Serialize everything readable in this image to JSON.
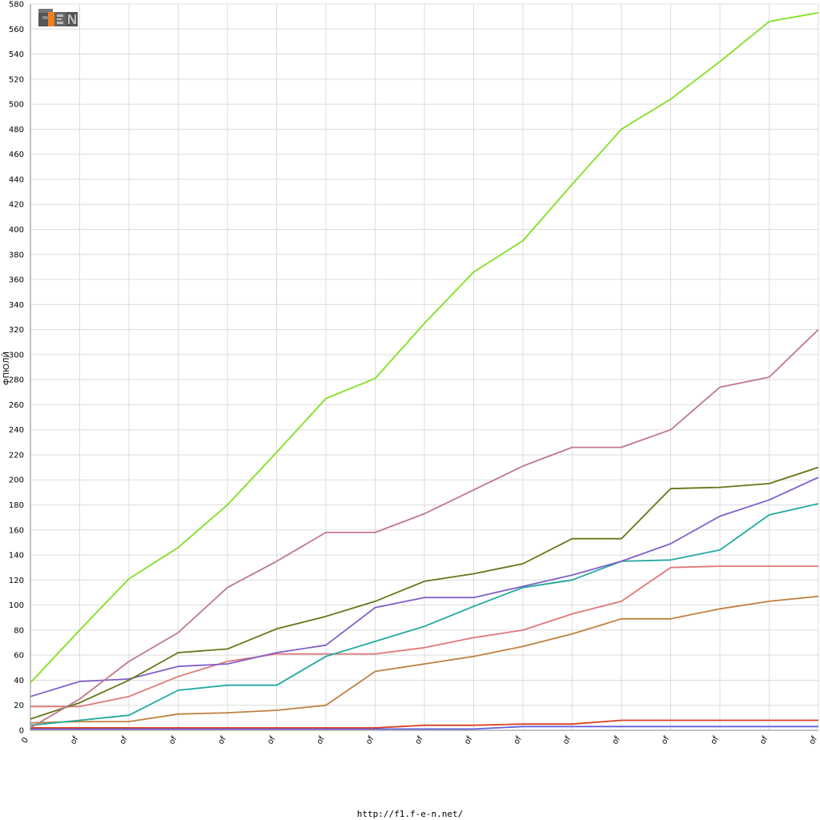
{
  "chart_data": {
    "type": "line",
    "title": "",
    "ylabel": "ФПЮЛЙ",
    "xlabel": "",
    "ylim": [
      0,
      580
    ],
    "yticks": [
      0,
      20,
      40,
      60,
      80,
      100,
      120,
      140,
      160,
      180,
      200,
      220,
      240,
      260,
      280,
      300,
      320,
      340,
      360,
      380,
      400,
      420,
      440,
      460,
      480,
      500,
      520,
      540,
      560,
      580
    ],
    "x": [
      0,
      1,
      2,
      3,
      4,
      5,
      6,
      7,
      8,
      9,
      10,
      11,
      12,
      13,
      14,
      15,
      16
    ],
    "xtick_labels": [
      "0",
      "of",
      "of",
      "of",
      "of",
      "of",
      "of",
      "of",
      "of",
      "of",
      "of",
      "of",
      "of",
      "of",
      "of",
      "of",
      "of"
    ],
    "grid": true,
    "series": [
      {
        "color": "#80e020",
        "values": [
          38,
          80,
          121,
          146,
          180,
          222,
          265,
          281,
          325,
          366,
          391,
          436,
          480,
          504,
          534,
          566,
          573
        ]
      },
      {
        "color": "#c07888",
        "values": [
          2,
          25,
          55,
          78,
          114,
          135,
          158,
          158,
          173,
          192,
          211,
          226,
          226,
          240,
          274,
          282,
          320
        ]
      },
      {
        "color": "#607818",
        "values": [
          9,
          22,
          40,
          62,
          65,
          81,
          91,
          103,
          119,
          125,
          133,
          153,
          153,
          193,
          194,
          197,
          210
        ]
      },
      {
        "color": "#8060c8",
        "values": [
          27,
          39,
          41,
          51,
          53,
          62,
          68,
          98,
          106,
          106,
          115,
          124,
          135,
          149,
          171,
          184,
          202
        ]
      },
      {
        "color": "#20a8a0",
        "values": [
          4,
          8,
          12,
          32,
          36,
          36,
          59,
          71,
          83,
          99,
          114,
          120,
          135,
          136,
          144,
          172,
          181
        ]
      },
      {
        "color": "#e07878",
        "values": [
          19,
          19,
          27,
          43,
          55,
          61,
          61,
          61,
          66,
          74,
          80,
          93,
          103,
          130,
          131,
          131,
          131
        ]
      },
      {
        "color": "#c08040",
        "values": [
          6,
          7,
          7,
          13,
          14,
          16,
          20,
          47,
          53,
          59,
          67,
          77,
          89,
          89,
          97,
          103,
          107
        ]
      },
      {
        "color": "#d84020",
        "values": [
          2,
          2,
          2,
          2,
          2,
          2,
          2,
          2,
          4,
          4,
          5,
          5,
          8,
          8,
          8,
          8,
          8
        ]
      },
      {
        "color": "#6060e0",
        "values": [
          1,
          1,
          1,
          1,
          1,
          1,
          1,
          1,
          1,
          1,
          3,
          3,
          3,
          3,
          3,
          3,
          3
        ]
      }
    ]
  },
  "logo": {
    "text": "F1EN"
  },
  "footer": {
    "url": "http://f1.f-e-n.net/"
  }
}
